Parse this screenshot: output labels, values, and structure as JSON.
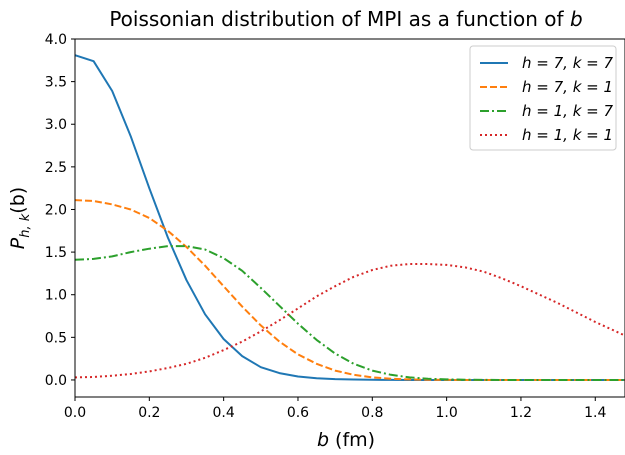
{
  "chart_data": {
    "type": "line",
    "title_prefix": "Poissonian distribution of MPI as a function of ",
    "title_var": "b",
    "xlabel_var": "b",
    "xlabel_unit": " (fm)",
    "ylabel_main": "P",
    "ylabel_sub": "h, k",
    "ylabel_arg": "(b)",
    "xlim": [
      0.0,
      1.48
    ],
    "ylim": [
      -0.2,
      4.0
    ],
    "xticks": [
      "0.0",
      "0.2",
      "0.4",
      "0.6",
      "0.8",
      "1.0",
      "1.2",
      "1.4"
    ],
    "xtick_values": [
      0.0,
      0.2,
      0.4,
      0.6,
      0.8,
      1.0,
      1.2,
      1.4
    ],
    "yticks": [
      "0.0",
      "0.5",
      "1.0",
      "1.5",
      "2.0",
      "2.5",
      "3.0",
      "3.5",
      "4.0"
    ],
    "ytick_values": [
      0.0,
      0.5,
      1.0,
      1.5,
      2.0,
      2.5,
      3.0,
      3.5,
      4.0
    ],
    "grid": false,
    "legend_position": "top-right",
    "x": [
      0.0,
      0.05,
      0.1,
      0.15,
      0.2,
      0.25,
      0.3,
      0.35,
      0.4,
      0.45,
      0.5,
      0.55,
      0.6,
      0.65,
      0.7,
      0.75,
      0.8,
      0.85,
      0.9,
      0.95,
      1.0,
      1.05,
      1.1,
      1.15,
      1.2,
      1.25,
      1.3,
      1.35,
      1.4,
      1.45,
      1.48
    ],
    "series": [
      {
        "name": "h = 7, k = 7",
        "color": "#1f77b4",
        "dash": "solid",
        "values": [
          3.81,
          3.74,
          3.39,
          2.86,
          2.25,
          1.67,
          1.17,
          0.77,
          0.48,
          0.28,
          0.15,
          0.08,
          0.04,
          0.02,
          0.01,
          0.005,
          0.002,
          0.001,
          0.0,
          0.0,
          0.0,
          0.0,
          0.0,
          0.0,
          0.0,
          0.0,
          0.0,
          0.0,
          0.0,
          0.0,
          0.0
        ]
      },
      {
        "name": "h = 7, k = 1",
        "color": "#ff7f0e",
        "dash": "dashed",
        "values": [
          2.11,
          2.1,
          2.06,
          2.0,
          1.9,
          1.75,
          1.56,
          1.34,
          1.1,
          0.86,
          0.64,
          0.45,
          0.3,
          0.19,
          0.11,
          0.06,
          0.03,
          0.015,
          0.007,
          0.003,
          0.001,
          0.0,
          0.0,
          0.0,
          0.0,
          0.0,
          0.0,
          0.0,
          0.0,
          0.0,
          0.0
        ]
      },
      {
        "name": "h = 1, k = 7",
        "color": "#2ca02c",
        "dash": "dashdot",
        "values": [
          1.41,
          1.42,
          1.45,
          1.5,
          1.54,
          1.57,
          1.57,
          1.53,
          1.43,
          1.28,
          1.08,
          0.87,
          0.66,
          0.47,
          0.31,
          0.19,
          0.11,
          0.06,
          0.03,
          0.015,
          0.007,
          0.003,
          0.001,
          0.0,
          0.0,
          0.0,
          0.0,
          0.0,
          0.0,
          0.0,
          0.0
        ]
      },
      {
        "name": "h = 1, k = 1",
        "color": "#d62728",
        "dash": "dotted",
        "values": [
          0.03,
          0.035,
          0.05,
          0.07,
          0.1,
          0.14,
          0.19,
          0.26,
          0.35,
          0.45,
          0.57,
          0.7,
          0.84,
          0.98,
          1.1,
          1.21,
          1.29,
          1.34,
          1.36,
          1.36,
          1.35,
          1.32,
          1.27,
          1.19,
          1.1,
          1.0,
          0.9,
          0.79,
          0.68,
          0.58,
          0.52
        ]
      }
    ]
  }
}
